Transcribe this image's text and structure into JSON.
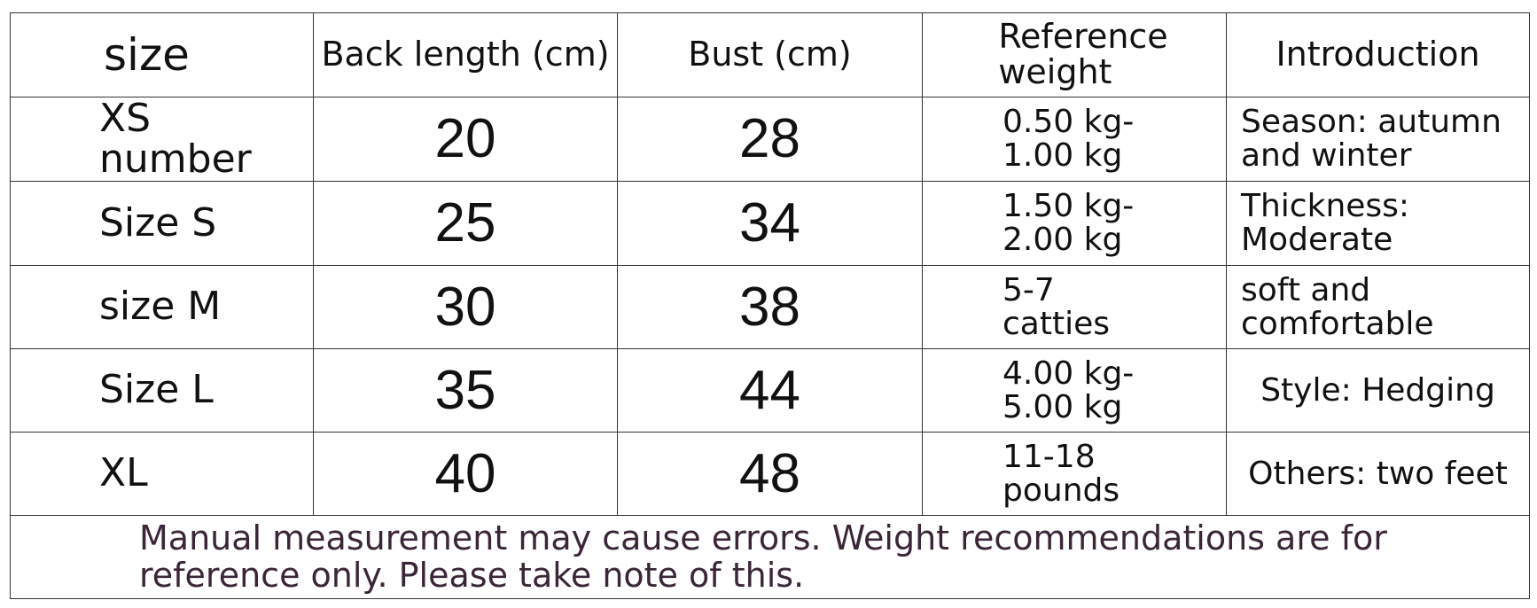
{
  "table": {
    "header": [
      "size",
      "Back length (cm)",
      "Bust (cm)",
      "Reference weight",
      "Introduction"
    ],
    "rows": [
      [
        "XS number",
        20,
        28,
        "0.50 kg-1.00 kg",
        "Season: autumn and winter"
      ],
      [
        "Size S",
        25,
        34,
        "1.50 kg-2.00 kg",
        "Thickness: Moderate"
      ],
      [
        "size M",
        30,
        38,
        "5-7 catties",
        "soft and comfortable"
      ],
      [
        "Size L",
        35,
        44,
        "4.00 kg-5.00 kg",
        "Style: Hedging"
      ],
      [
        "XL",
        40,
        48,
        "11-18 pounds",
        "Others: two feet"
      ]
    ],
    "note": "Manual measurement may cause errors. Weight recommendations are for reference only. Please take note of this."
  }
}
